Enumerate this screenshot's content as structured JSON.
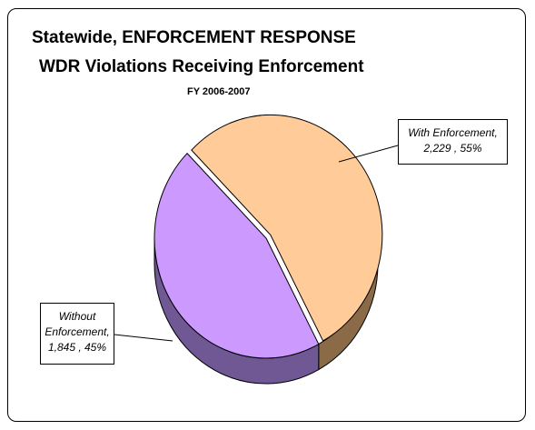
{
  "chart_data": {
    "type": "pie",
    "title": "Statewide, ENFORCEMENT RESPONSE",
    "subtitle": "WDR Violations Receiving Enforcement",
    "period": "FY 2006-2007",
    "slices": [
      {
        "name": "With Enforcement",
        "value": 2229,
        "percent": 55,
        "label_line1": "With Enforcement,",
        "label_line2": "2,229 , 55%",
        "color": "#ffcc99",
        "side_color": "#8b6b47"
      },
      {
        "name": "Without Enforcement",
        "value": 1845,
        "percent": 45,
        "label_line1": "Without",
        "label_line2": "Enforcement,",
        "label_line3": "1,845 , 45%",
        "color": "#cc99ff",
        "side_color": "#6f5894"
      }
    ]
  }
}
